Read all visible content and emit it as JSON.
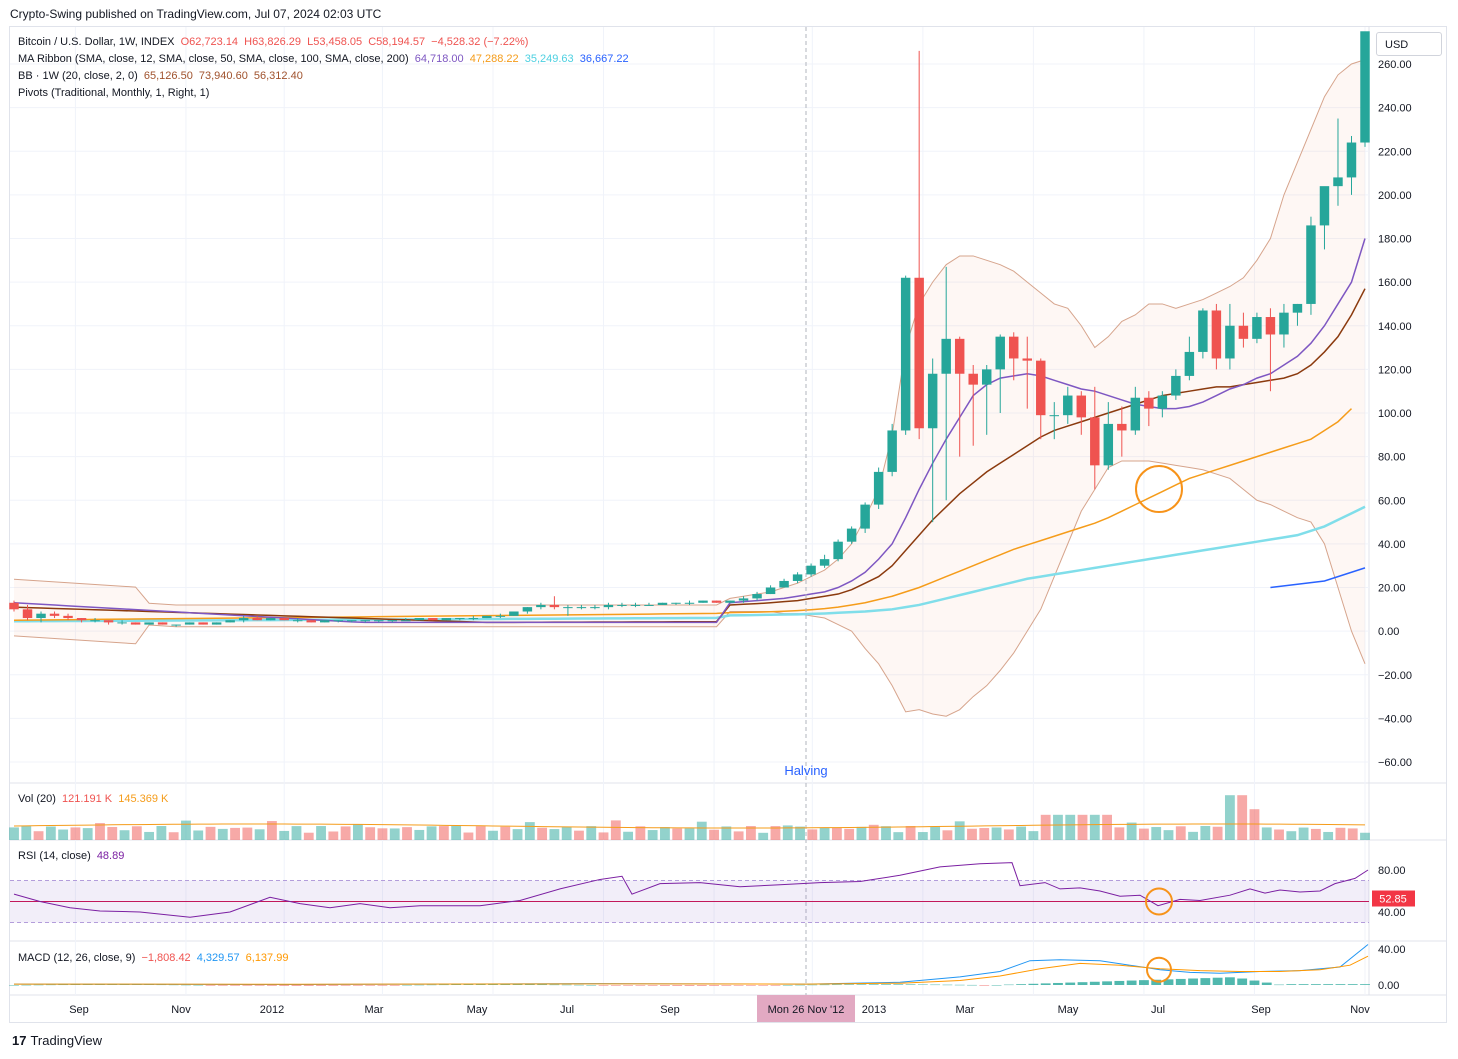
{
  "header": {
    "published": "Crypto-Swing published on TradingView.com, Jul 07, 2024 02:03 UTC"
  },
  "legend": {
    "symbol": "Bitcoin / U.S. Dollar, 1W, INDEX",
    "o": "O62,723.14",
    "h": "H63,826.29",
    "l": "L53,458.05",
    "c": "C58,194.57",
    "chg": "−4,528.32 (−7.22%)",
    "ma_label": "MA Ribbon (SMA, close, 12, SMA, close, 50, SMA, close, 100, SMA, close, 200)",
    "ma_vals": [
      "64,718.00",
      "47,288.22",
      "35,249.63",
      "36,667.22"
    ],
    "bb_label": "BB · 1W (20, close, 2, 0)",
    "bb_vals": [
      "65,126.50",
      "73,940.60",
      "56,312.40"
    ],
    "pivots": "Pivots (Traditional, Monthly, 1, Right, 1)",
    "vol_label": "Vol (20)",
    "vol_vals": [
      "121.191 K",
      "145.369 K"
    ],
    "rsi_label": "RSI (14, close)",
    "rsi_val": "48.89",
    "macd_label": "MACD (12, 26, close, 9)",
    "macd_vals": [
      "−1,808.42",
      "4,329.57",
      "6,137.99"
    ]
  },
  "unit": "USD",
  "halving_label": "Halving",
  "crosshair_date": "Mon 26 Nov '12",
  "brand": "TradingView",
  "colors": {
    "up": "#26a69a",
    "down": "#ef5350",
    "ma12": "#7e57c2",
    "ma50": "#8b3a0e",
    "ma100": "#f59c1a",
    "ma200": "#80deea",
    "ma_extra": "#2962ff",
    "bb_band": "#d6a48c",
    "rsi": "#7b1fa2",
    "macd": "#2196f3",
    "signal": "#ff9800"
  },
  "chart_data": [
    {
      "type": "candlestick",
      "ylim": [
        -60,
        260
      ],
      "y_ticks": [
        "260.00",
        "240.00",
        "220.00",
        "200.00",
        "180.00",
        "160.00",
        "140.00",
        "120.00",
        "100.00",
        "80.00",
        "60.00",
        "40.00",
        "20.00",
        "0.00",
        "−20.00",
        "−40.00",
        "−60.00"
      ],
      "x_ticks": [
        "Sep",
        "Nov",
        "2012",
        "Mar",
        "May",
        "Jul",
        "Sep",
        "2013",
        "Mar",
        "May",
        "Jul",
        "Sep",
        "Nov"
      ],
      "candles_ohlc_2011_2012": [
        [
          13,
          14,
          9,
          10
        ],
        [
          10,
          12,
          5,
          6
        ],
        [
          6,
          9,
          4,
          8
        ],
        [
          8,
          9,
          6,
          7
        ],
        [
          7,
          8,
          5,
          6
        ],
        [
          6,
          6,
          4,
          5
        ],
        [
          5,
          6,
          4,
          5
        ],
        [
          5,
          5,
          3,
          4
        ],
        [
          4,
          5,
          3,
          4
        ],
        [
          4,
          4,
          3,
          3
        ],
        [
          3,
          4,
          3,
          4
        ],
        [
          4,
          4,
          3,
          3
        ],
        [
          3,
          3,
          2,
          3
        ],
        [
          3,
          4,
          3,
          4
        ],
        [
          4,
          4,
          3,
          3
        ],
        [
          3,
          4,
          3,
          4
        ],
        [
          4,
          5,
          4,
          5
        ],
        [
          5,
          7,
          4,
          6
        ],
        [
          6,
          7,
          5,
          5
        ],
        [
          5,
          6,
          5,
          6
        ],
        [
          6,
          6,
          5,
          5
        ],
        [
          5,
          6,
          4,
          5
        ],
        [
          5,
          5,
          4,
          4
        ],
        [
          4,
          5,
          4,
          5
        ],
        [
          5,
          5,
          4,
          5
        ],
        [
          5,
          5,
          4,
          5
        ],
        [
          5,
          5,
          4,
          5
        ],
        [
          5,
          5,
          4,
          5
        ],
        [
          5,
          5,
          4,
          5
        ],
        [
          5,
          6,
          5,
          5
        ],
        [
          5,
          6,
          5,
          6
        ],
        [
          6,
          6,
          5,
          5
        ],
        [
          5,
          6,
          5,
          6
        ],
        [
          6,
          6,
          5,
          6
        ],
        [
          6,
          7,
          5,
          6
        ],
        [
          6,
          7,
          6,
          7
        ],
        [
          7,
          8,
          6,
          7
        ],
        [
          7,
          9,
          7,
          9
        ],
        [
          9,
          11,
          8,
          11
        ],
        [
          11,
          13,
          10,
          12
        ],
        [
          12,
          16,
          10,
          11
        ],
        [
          11,
          12,
          7,
          11
        ],
        [
          11,
          12,
          10,
          11
        ],
        [
          11,
          12,
          10,
          11
        ],
        [
          11,
          13,
          10,
          12
        ],
        [
          12,
          13,
          11,
          12
        ],
        [
          12,
          13,
          11,
          12
        ],
        [
          12,
          13,
          12,
          12
        ],
        [
          12,
          13,
          12,
          13
        ],
        [
          13,
          13,
          12,
          13
        ],
        [
          13,
          14,
          12,
          13
        ],
        [
          13,
          14,
          13,
          14
        ],
        [
          14,
          14,
          13,
          13
        ]
      ],
      "candles_ohlc_2013": [
        [
          13,
          14,
          13,
          14
        ],
        [
          14,
          16,
          13,
          15
        ],
        [
          15,
          18,
          14,
          17
        ],
        [
          17,
          21,
          17,
          20
        ],
        [
          20,
          24,
          20,
          23
        ],
        [
          23,
          27,
          22,
          26
        ],
        [
          26,
          31,
          25,
          30
        ],
        [
          30,
          35,
          29,
          33
        ],
        [
          33,
          42,
          32,
          41
        ],
        [
          41,
          48,
          40,
          47
        ],
        [
          47,
          59,
          45,
          58
        ],
        [
          58,
          75,
          56,
          73
        ],
        [
          73,
          95,
          71,
          92
        ],
        [
          92,
          163,
          90,
          162
        ],
        [
          162,
          266,
          88,
          93
        ],
        [
          93,
          125,
          50,
          118
        ],
        [
          118,
          167,
          60,
          134
        ],
        [
          134,
          135,
          80,
          118
        ],
        [
          118,
          122,
          85,
          113
        ],
        [
          113,
          122,
          90,
          120
        ],
        [
          120,
          136,
          100,
          135
        ],
        [
          135,
          137,
          115,
          125
        ],
        [
          125,
          135,
          102,
          124
        ],
        [
          124,
          125,
          88,
          99
        ],
        [
          99,
          105,
          88,
          99
        ],
        [
          99,
          112,
          95,
          108
        ],
        [
          108,
          110,
          90,
          98
        ],
        [
          98,
          112,
          65,
          76
        ],
        [
          76,
          105,
          74,
          95
        ],
        [
          95,
          103,
          80,
          92
        ],
        [
          92,
          112,
          90,
          107
        ],
        [
          107,
          110,
          94,
          102
        ],
        [
          102,
          110,
          98,
          108
        ],
        [
          108,
          120,
          106,
          117
        ],
        [
          117,
          135,
          115,
          128
        ],
        [
          128,
          148,
          125,
          147
        ],
        [
          147,
          150,
          120,
          125
        ],
        [
          125,
          150,
          120,
          140
        ],
        [
          140,
          146,
          130,
          134
        ],
        [
          134,
          146,
          132,
          144
        ],
        [
          144,
          148,
          110,
          136
        ],
        [
          136,
          150,
          130,
          146
        ],
        [
          146,
          150,
          140,
          150
        ],
        [
          150,
          190,
          145,
          186
        ],
        [
          186,
          202,
          175,
          204
        ],
        [
          204,
          235,
          195,
          208
        ],
        [
          208,
          227,
          200,
          224
        ],
        [
          224,
          270,
          222,
          330
        ]
      ]
    },
    {
      "type": "bar",
      "name": "Vol (20)",
      "values_pattern": "weekly volume, scaled 0-1",
      "spike_indices": [
        143,
        144
      ]
    },
    {
      "type": "line",
      "name": "RSI (14, close)",
      "ylim": [
        0,
        100
      ],
      "y_ticks": [
        "80.00",
        "40.00"
      ],
      "last_label": "52.85",
      "band": [
        30,
        70
      ],
      "midline": 50
    },
    {
      "type": "bar",
      "name": "MACD (12, 26, close, 9)",
      "y_ticks": [
        "40.00",
        "0.00"
      ]
    }
  ]
}
